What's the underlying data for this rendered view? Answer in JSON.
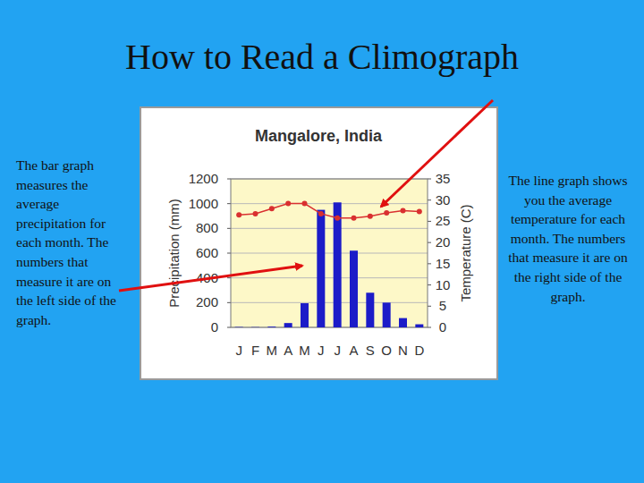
{
  "slide": {
    "title": "How to Read a Climograph",
    "left_text": "The bar graph measures the average precipitation for each month. The numbers that measure it are on the left side of the graph.",
    "right_text": "The line graph shows you the average temperature for each month. The numbers that measure it are on the right side of the graph."
  },
  "chart_data": {
    "type": "bar",
    "title": "Mangalore, India",
    "ylabel": "Precipitation (mm)",
    "y2label": "Temperature (C)",
    "categories": [
      "J",
      "F",
      "M",
      "A",
      "M",
      "J",
      "J",
      "A",
      "S",
      "O",
      "N",
      "D"
    ],
    "series": [
      {
        "type": "bar",
        "color": "#1c1cc8",
        "values": [
          3,
          2,
          6,
          35,
          195,
          950,
          1010,
          620,
          280,
          200,
          75,
          25
        ]
      },
      {
        "type": "line",
        "axis": "y2",
        "color": "#d93030",
        "marker": "circle",
        "values": [
          26.5,
          26.8,
          28,
          29.2,
          29.2,
          26.8,
          25.8,
          25.8,
          26.2,
          27,
          27.5,
          27.3
        ]
      }
    ],
    "ylim": [
      0,
      1200
    ],
    "yticks": [
      0,
      200,
      400,
      600,
      800,
      1000,
      1200
    ],
    "y2lim": [
      0,
      35
    ],
    "y2ticks": [
      0,
      5,
      10,
      15,
      20,
      25,
      30,
      35
    ],
    "grid": true
  }
}
